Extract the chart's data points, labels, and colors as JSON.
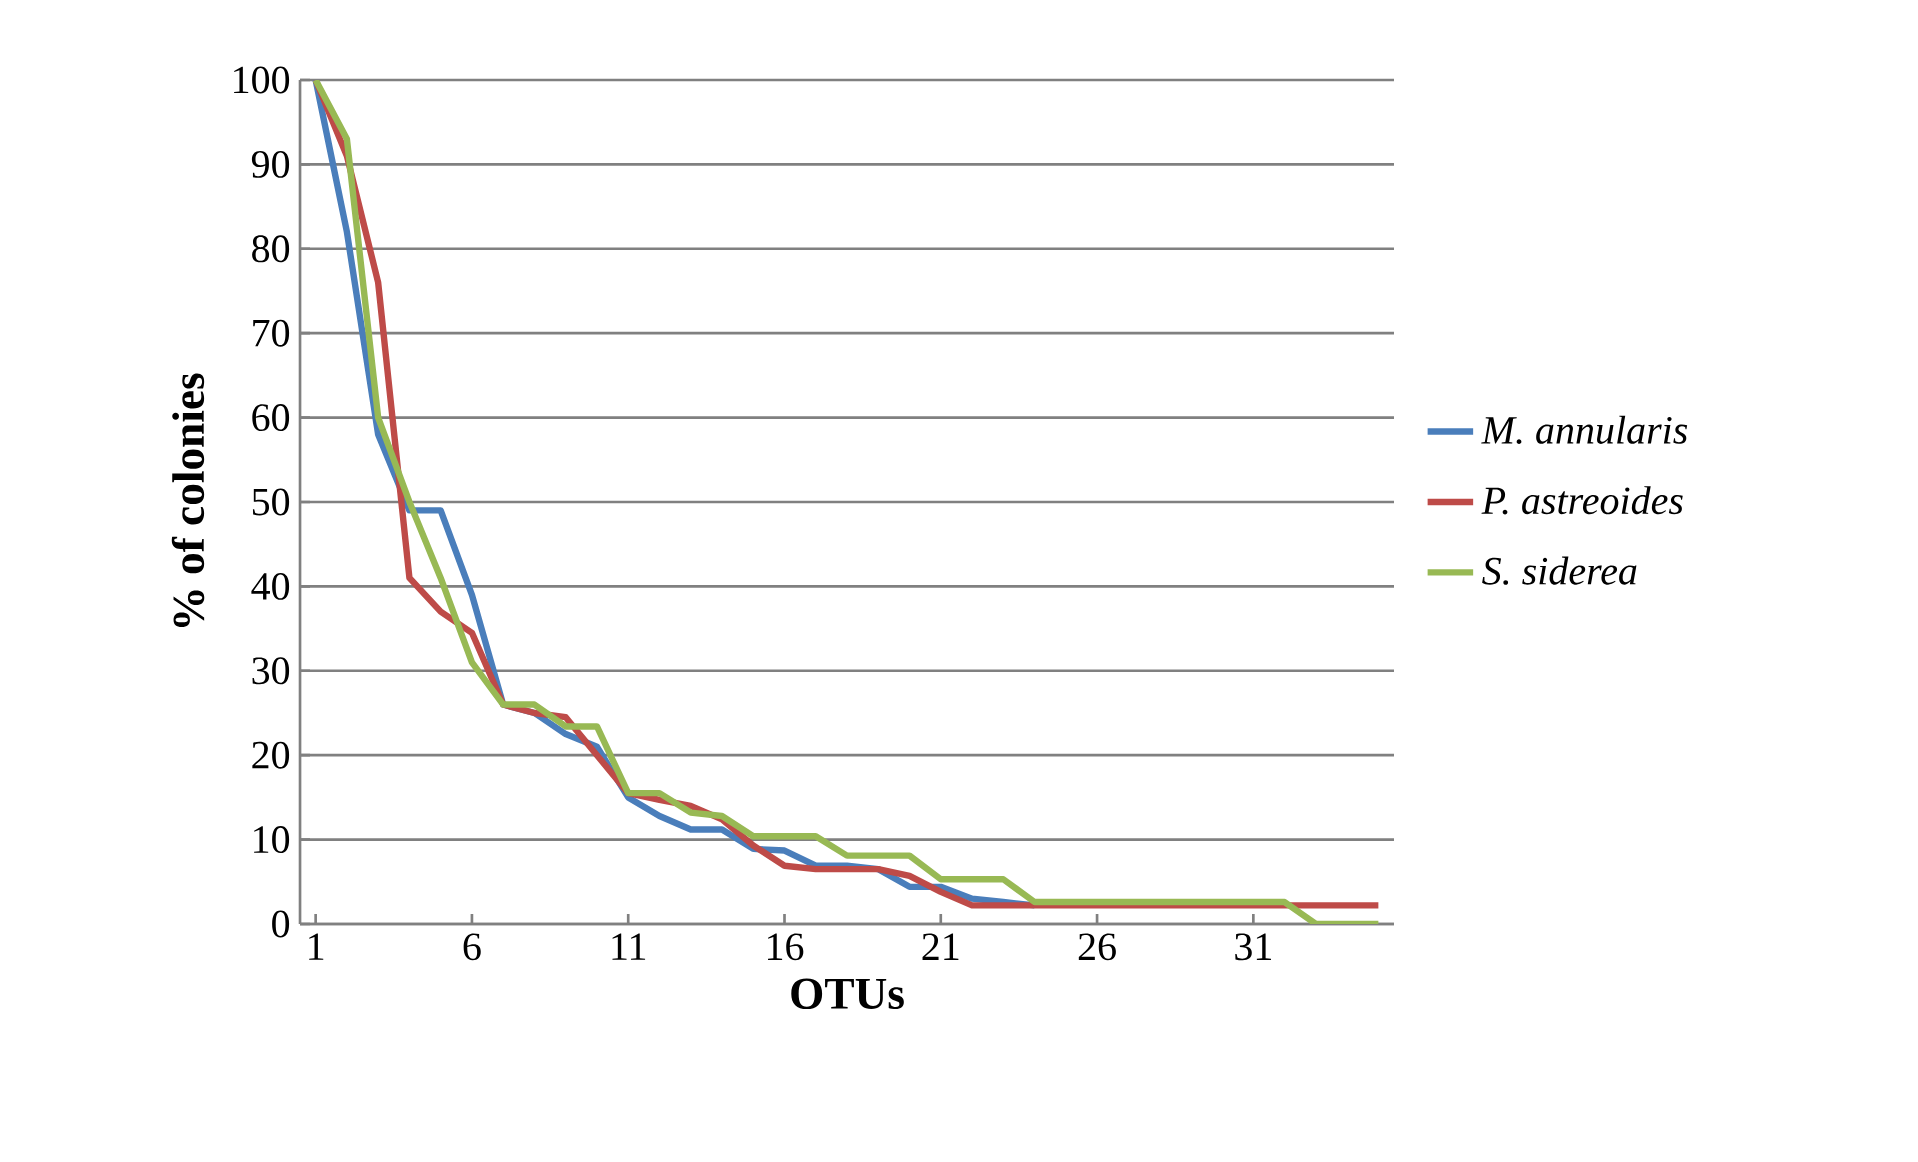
{
  "chart_data": {
    "type": "line",
    "xlabel": "OTUs",
    "ylabel": "% of colonies",
    "categories": [
      "1",
      null,
      null,
      null,
      null,
      "6",
      null,
      null,
      null,
      null,
      "11",
      null,
      null,
      null,
      null,
      "16",
      null,
      null,
      null,
      null,
      "21",
      null,
      null,
      null,
      null,
      "26",
      null,
      null,
      null,
      null,
      "31",
      null,
      null,
      null,
      null
    ],
    "series": [
      {
        "name": "M. annularis",
        "color": "#4a7ebb",
        "values": [
          100,
          82,
          58,
          49,
          49,
          39,
          26,
          25,
          22.5,
          21,
          15,
          12.8,
          11.2,
          11.2,
          8.9,
          8.7,
          6.9,
          6.9,
          6.5,
          4.4,
          4.4,
          3,
          2.6,
          2.2,
          null,
          null,
          null,
          null,
          null,
          null,
          null,
          null,
          null,
          null,
          null
        ]
      },
      {
        "name": "P. astreoides",
        "color": "#be4b48",
        "values": [
          100,
          91,
          76,
          41,
          37,
          34.5,
          26,
          25,
          24.5,
          20,
          15.5,
          14.7,
          14,
          12.4,
          9.3,
          6.9,
          6.5,
          6.5,
          6.5,
          5.7,
          3.8,
          2.2,
          2.2,
          2.2,
          2.2,
          2.2,
          2.2,
          2.2,
          2.2,
          2.2,
          2.2,
          2.2,
          2.2,
          2.2,
          2.2
        ]
      },
      {
        "name": "S. siderea",
        "color": "#98b954",
        "values": [
          100,
          93,
          60,
          50,
          41,
          31,
          26,
          26,
          23.4,
          23.4,
          15.5,
          15.5,
          13.2,
          12.8,
          10.4,
          10.4,
          10.4,
          8.1,
          8.1,
          8.1,
          5.3,
          5.3,
          5.3,
          2.6,
          2.6,
          2.6,
          2.6,
          2.6,
          2.6,
          2.6,
          2.6,
          2.6,
          0,
          0,
          0
        ]
      }
    ],
    "ylim": [
      0,
      100
    ],
    "yticks": [
      0,
      10,
      20,
      30,
      40,
      50,
      60,
      70,
      80,
      90,
      100
    ],
    "grid": "y",
    "legend": "right",
    "marker": "none",
    "line_style": "solid"
  }
}
